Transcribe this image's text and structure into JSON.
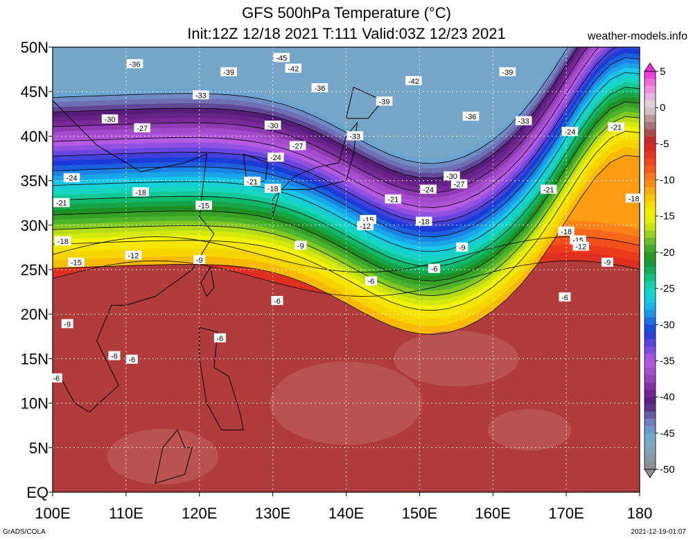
{
  "title": {
    "line1": "GFS 500hPa Temperature (°C)",
    "line2": "Init:12Z 12/18 2021 T:111 Valid:03Z 12/23 2021"
  },
  "brand": "weather-models.info",
  "credit": "GrADS/COLA",
  "timestamp": "2021-12-19-01:07",
  "map": {
    "lon_range": [
      100,
      180
    ],
    "lat_range": [
      0,
      50
    ],
    "lon_ticks": [
      "100E",
      "110E",
      "120E",
      "130E",
      "140E",
      "150E",
      "160E",
      "170E",
      "180"
    ],
    "lat_ticks": [
      "EQ",
      "5N",
      "10N",
      "15N",
      "20N",
      "25N",
      "30N",
      "35N",
      "40N",
      "45N",
      "50N"
    ],
    "contour_labels": [
      {
        "text": "-45",
        "lon": 131.2,
        "lat": 48.8
      },
      {
        "text": "-42",
        "lon": 132.8,
        "lat": 47.6
      },
      {
        "text": "-36",
        "lon": 111.2,
        "lat": 48.1
      },
      {
        "text": "-39",
        "lon": 124.0,
        "lat": 47.2
      },
      {
        "text": "-42",
        "lon": 149.2,
        "lat": 46.2
      },
      {
        "text": "-39",
        "lon": 162.0,
        "lat": 47.2
      },
      {
        "text": "-36",
        "lon": 136.4,
        "lat": 45.4
      },
      {
        "text": "-33",
        "lon": 120.2,
        "lat": 44.6
      },
      {
        "text": "-39",
        "lon": 145.2,
        "lat": 43.9
      },
      {
        "text": "-30",
        "lon": 107.8,
        "lat": 41.9
      },
      {
        "text": "-27",
        "lon": 112.2,
        "lat": 40.9
      },
      {
        "text": "-30",
        "lon": 130.0,
        "lat": 41.2
      },
      {
        "text": "-36",
        "lon": 157.0,
        "lat": 42.2
      },
      {
        "text": "-33",
        "lon": 164.2,
        "lat": 41.7
      },
      {
        "text": "-33",
        "lon": 141.2,
        "lat": 40.0
      },
      {
        "text": "-24",
        "lon": 170.5,
        "lat": 40.5
      },
      {
        "text": "-21",
        "lon": 176.8,
        "lat": 41.0
      },
      {
        "text": "-27",
        "lon": 133.4,
        "lat": 38.9
      },
      {
        "text": "-24",
        "lon": 130.4,
        "lat": 37.6
      },
      {
        "text": "-24",
        "lon": 102.6,
        "lat": 35.3
      },
      {
        "text": "-21",
        "lon": 127.2,
        "lat": 34.9
      },
      {
        "text": "-30",
        "lon": 154.4,
        "lat": 35.5
      },
      {
        "text": "-27",
        "lon": 155.4,
        "lat": 34.6
      },
      {
        "text": "-24",
        "lon": 151.2,
        "lat": 34.0
      },
      {
        "text": "-21",
        "lon": 167.6,
        "lat": 34.0
      },
      {
        "text": "-18",
        "lon": 112.0,
        "lat": 33.7
      },
      {
        "text": "-18",
        "lon": 130.0,
        "lat": 34.1
      },
      {
        "text": "-21",
        "lon": 101.2,
        "lat": 32.5
      },
      {
        "text": "-15",
        "lon": 120.6,
        "lat": 32.2
      },
      {
        "text": "-21",
        "lon": 146.4,
        "lat": 32.9
      },
      {
        "text": "-18",
        "lon": 179.2,
        "lat": 33.0
      },
      {
        "text": "-15",
        "lon": 143.0,
        "lat": 30.6
      },
      {
        "text": "-12",
        "lon": 142.6,
        "lat": 29.9
      },
      {
        "text": "-18",
        "lon": 150.6,
        "lat": 30.4
      },
      {
        "text": "-18",
        "lon": 170.0,
        "lat": 29.3
      },
      {
        "text": "-15",
        "lon": 171.6,
        "lat": 28.3
      },
      {
        "text": "-12",
        "lon": 172.0,
        "lat": 27.6
      },
      {
        "text": "-18",
        "lon": 101.4,
        "lat": 28.2
      },
      {
        "text": "-12",
        "lon": 111.0,
        "lat": 26.6
      },
      {
        "text": "-15",
        "lon": 103.2,
        "lat": 25.8
      },
      {
        "text": "-9",
        "lon": 133.8,
        "lat": 27.7
      },
      {
        "text": "-9",
        "lon": 155.8,
        "lat": 27.5
      },
      {
        "text": "-9",
        "lon": 120.0,
        "lat": 26.1
      },
      {
        "text": "-9",
        "lon": 175.6,
        "lat": 25.8
      },
      {
        "text": "-6",
        "lon": 152.0,
        "lat": 25.1
      },
      {
        "text": "-6",
        "lon": 143.4,
        "lat": 23.7
      },
      {
        "text": "-6",
        "lon": 169.8,
        "lat": 21.9
      },
      {
        "text": "-6",
        "lon": 130.6,
        "lat": 21.5
      },
      {
        "text": "-9",
        "lon": 102.0,
        "lat": 18.9
      },
      {
        "text": "-6",
        "lon": 122.8,
        "lat": 17.3
      },
      {
        "text": "-6",
        "lon": 108.4,
        "lat": 15.3
      },
      {
        "text": "-6",
        "lon": 110.8,
        "lat": 14.9
      },
      {
        "text": "-6",
        "lon": 100.5,
        "lat": 12.8
      }
    ]
  },
  "colorbar": {
    "ticks": [
      "5",
      "0",
      "-5",
      "-10",
      "-15",
      "-20",
      "-25",
      "-30",
      "-35",
      "-40",
      "-45",
      "-50"
    ],
    "range": [
      5,
      -50
    ],
    "colors": [
      {
        "v": 5,
        "c": "#f22bd8"
      },
      {
        "v": 3,
        "c": "#ee7fe0"
      },
      {
        "v": 1,
        "c": "#e6c1df"
      },
      {
        "v": 0,
        "c": "#dddddd"
      },
      {
        "v": -1,
        "c": "#bfa7a7"
      },
      {
        "v": -3,
        "c": "#a36464"
      },
      {
        "v": -4,
        "c": "#b43434"
      },
      {
        "v": -5,
        "c": "#d42323"
      },
      {
        "v": -7,
        "c": "#ee3a1d"
      },
      {
        "v": -9,
        "c": "#f8661b"
      },
      {
        "v": -11,
        "c": "#fb9d12"
      },
      {
        "v": -13,
        "c": "#f6d400"
      },
      {
        "v": -15,
        "c": "#f4f400"
      },
      {
        "v": -17,
        "c": "#b6dc18"
      },
      {
        "v": -19,
        "c": "#4cb42a"
      },
      {
        "v": -21,
        "c": "#1d8f23"
      },
      {
        "v": -23,
        "c": "#0fb96b"
      },
      {
        "v": -25,
        "c": "#14d6c0"
      },
      {
        "v": -27,
        "c": "#18c6ea"
      },
      {
        "v": -29,
        "c": "#1b82e8"
      },
      {
        "v": -31,
        "c": "#1c3cd8"
      },
      {
        "v": -33,
        "c": "#6a46e0"
      },
      {
        "v": -35,
        "c": "#b65ae3"
      },
      {
        "v": -37,
        "c": "#a349cc"
      },
      {
        "v": -39,
        "c": "#7a2a98"
      },
      {
        "v": -41,
        "c": "#551c78"
      },
      {
        "v": -43,
        "c": "#6f6fb5"
      },
      {
        "v": -45,
        "c": "#6aa5d2"
      },
      {
        "v": -47,
        "c": "#7fa7bd"
      },
      {
        "v": -50,
        "c": "#8d8d8d"
      }
    ]
  },
  "field_colors": {
    "tropical": "#b23c3c",
    "tropical_patch": "#bd5a5a",
    "coast": "#000000"
  }
}
